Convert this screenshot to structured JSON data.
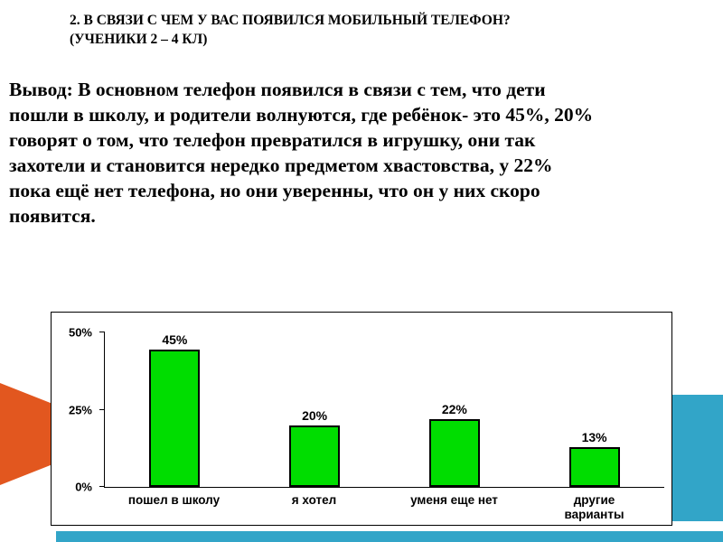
{
  "slide": {
    "title_line1": "2. В СВЯЗИ С ЧЕМ У ВАС ПОЯВИЛСЯ МОБИЛЬНЫЙ ТЕЛЕФОН?",
    "title_line2": "(УЧЕНИКИ 2 – 4 КЛ)",
    "body": "Вывод: В основном телефон появился в связи с тем, что дети пошли в школу, и родители волнуются, где ребёнок- это 45%, 20% говорят о том, что телефон превратился в игрушку, они так захотели и становится нередко предметом хвастовства, у 22% пока ещё нет телефона, но они уверенны, что он у них скоро появится."
  },
  "colors": {
    "bar_fill": "#00dd00",
    "bar_border": "#000000",
    "accent_orange": "#e2571f",
    "accent_teal": "#32a5c8"
  },
  "chart_data": {
    "type": "bar",
    "categories": [
      "пошел в  школу",
      "я хотел",
      "уменя еще нет",
      "другие\nварианты"
    ],
    "values": [
      45,
      20,
      22,
      13
    ],
    "value_labels": [
      "45%",
      "20%",
      "22%",
      "13%"
    ],
    "title": "",
    "xlabel": "",
    "ylabel": "",
    "ylim": [
      0,
      50
    ],
    "ytick_values": [
      0,
      25,
      50
    ],
    "yticks": [
      "0%",
      "25%",
      "50%"
    ],
    "grid": false,
    "legend": false
  }
}
